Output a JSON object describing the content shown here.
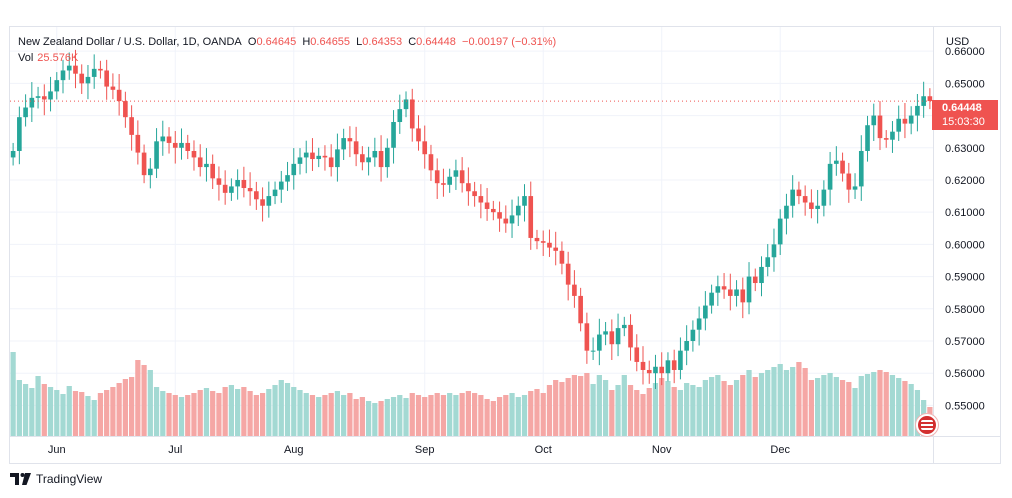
{
  "header": {
    "symbol": "New Zealand Dollar / U.S. Dollar, 1D, OANDA",
    "open_label": "O",
    "open": "0.64645",
    "high_label": "H",
    "high": "0.64655",
    "low_label": "L",
    "low": "0.64353",
    "close_label": "C",
    "close": "0.64448",
    "change": "−0.00197 (−0.31%)",
    "vol_label": "Vol",
    "vol": "25.576K"
  },
  "axis": {
    "currency": "USD",
    "last_price": "0.64448",
    "countdown": "15:03:30"
  },
  "footer": {
    "brand": "TradingView"
  },
  "colors": {
    "up": "#26a69a",
    "down": "#ef5350",
    "vol_up": "#a3d9d3",
    "vol_down": "#f5a7a5"
  },
  "chart_data": {
    "type": "candlestick",
    "y_ticks": [
      "0.66000",
      "0.65000",
      "0.64000",
      "0.63000",
      "0.62000",
      "0.61000",
      "0.60000",
      "0.59000",
      "0.58000",
      "0.57000",
      "0.56000",
      "0.55000"
    ],
    "y_tick_values": [
      0.66,
      0.65,
      0.64,
      0.63,
      0.62,
      0.61,
      0.6,
      0.59,
      0.58,
      0.57,
      0.56,
      0.55
    ],
    "x_ticks": [
      "Jun",
      "Jul",
      "Aug",
      "Sep",
      "Oct",
      "Nov",
      "Dec"
    ],
    "x_tick_index": [
      7,
      26,
      45,
      66,
      85,
      104,
      123
    ],
    "ylim": [
      0.5405,
      0.6675
    ],
    "last_price": 0.64448,
    "closes": [
      0.629,
      0.6395,
      0.6425,
      0.6455,
      0.646,
      0.645,
      0.6475,
      0.651,
      0.654,
      0.6555,
      0.653,
      0.65,
      0.652,
      0.6545,
      0.654,
      0.649,
      0.648,
      0.6445,
      0.6395,
      0.634,
      0.6285,
      0.6215,
      0.6235,
      0.632,
      0.6335,
      0.6315,
      0.63,
      0.6315,
      0.629,
      0.627,
      0.624,
      0.625,
      0.6205,
      0.6185,
      0.616,
      0.618,
      0.62,
      0.6175,
      0.6165,
      0.614,
      0.612,
      0.615,
      0.617,
      0.6195,
      0.6215,
      0.625,
      0.627,
      0.6285,
      0.6265,
      0.6275,
      0.627,
      0.624,
      0.6295,
      0.633,
      0.632,
      0.628,
      0.6255,
      0.627,
      0.629,
      0.624,
      0.63,
      0.638,
      0.642,
      0.645,
      0.636,
      0.632,
      0.628,
      0.623,
      0.619,
      0.6185,
      0.621,
      0.623,
      0.619,
      0.6165,
      0.615,
      0.613,
      0.611,
      0.61,
      0.608,
      0.6065,
      0.609,
      0.612,
      0.615,
      0.602,
      0.601,
      0.6005,
      0.599,
      0.598,
      0.594,
      0.5875,
      0.584,
      0.5755,
      0.567,
      0.567,
      0.572,
      0.573,
      0.569,
      0.574,
      0.575,
      0.568,
      0.5635,
      0.561,
      0.56,
      0.562,
      0.56,
      0.564,
      0.561,
      0.567,
      0.57,
      0.5735,
      0.577,
      0.581,
      0.585,
      0.587,
      0.586,
      0.584,
      0.586,
      0.582,
      0.59,
      0.588,
      0.593,
      0.596,
      0.6,
      0.608,
      0.612,
      0.617,
      0.615,
      0.613,
      0.611,
      0.612,
      0.617,
      0.625,
      0.626,
      0.622,
      0.617,
      0.618,
      0.629,
      0.637,
      0.64,
      0.633,
      0.6325,
      0.635,
      0.639,
      0.6375,
      0.64,
      0.643,
      0.646,
      0.6445
    ],
    "volumes": [
      84,
      56,
      52,
      48,
      60,
      52,
      49,
      46,
      42,
      50,
      45,
      44,
      40,
      36,
      43,
      46,
      49,
      53,
      57,
      59,
      76,
      71,
      66,
      49,
      45,
      43,
      41,
      39,
      41,
      43,
      46,
      48,
      45,
      43,
      49,
      51,
      47,
      49,
      45,
      41,
      43,
      47,
      51,
      56,
      53,
      49,
      46,
      43,
      41,
      39,
      41,
      43,
      45,
      41,
      43,
      37,
      39,
      35,
      33,
      35,
      37,
      39,
      41,
      38,
      43,
      41,
      39,
      41,
      43,
      41,
      43,
      41,
      43,
      45,
      43,
      41,
      37,
      35,
      39,
      41,
      43,
      39,
      41,
      45,
      47,
      43,
      51,
      56,
      54,
      58,
      61,
      60,
      63,
      52,
      61,
      56,
      46,
      51,
      61,
      51,
      46,
      42,
      48,
      53,
      58,
      55,
      49,
      46,
      53,
      51,
      49,
      56,
      59,
      61,
      55,
      51,
      56,
      61,
      66,
      59,
      63,
      66,
      69,
      72,
      66,
      69,
      74,
      68,
      56,
      58,
      61,
      63,
      59,
      56,
      54,
      48,
      60,
      62,
      64,
      66,
      64,
      61,
      58,
      55,
      52,
      46,
      36,
      29
    ]
  }
}
